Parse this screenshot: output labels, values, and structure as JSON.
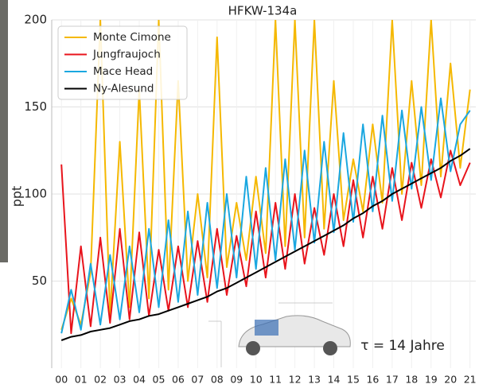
{
  "chart_data": {
    "type": "line",
    "title": "HFKW-134a",
    "ylabel": "ppt",
    "annotation": "τ = 14 Jahre",
    "x": [
      0,
      0.5,
      1,
      1.5,
      2,
      2.5,
      3,
      3.5,
      4,
      4.5,
      5,
      5.5,
      6,
      6.5,
      7,
      7.5,
      8,
      8.5,
      9,
      9.5,
      10,
      10.5,
      11,
      11.5,
      12,
      12.5,
      13,
      13.5,
      14,
      14.5,
      15,
      15.5,
      16,
      16.5,
      17,
      17.5,
      18,
      18.5,
      19,
      19.5,
      20,
      20.5,
      21
    ],
    "series": [
      {
        "name": "Monte Cimone",
        "color": "#f5b800",
        "values": [
          22,
          40,
          25,
          55,
          200,
          30,
          130,
          35,
          160,
          40,
          200,
          45,
          165,
          50,
          100,
          52,
          190,
          58,
          95,
          62,
          110,
          66,
          200,
          70,
          200,
          75,
          200,
          80,
          165,
          85,
          120,
          90,
          140,
          95,
          200,
          100,
          165,
          105,
          200,
          110,
          175,
          115,
          160
        ]
      },
      {
        "name": "Jungfraujoch",
        "color": "#e8141c",
        "values": [
          117,
          20,
          70,
          24,
          75,
          26,
          80,
          28,
          78,
          30,
          68,
          33,
          70,
          35,
          73,
          38,
          80,
          42,
          76,
          47,
          90,
          52,
          95,
          57,
          100,
          60,
          92,
          65,
          100,
          70,
          108,
          75,
          110,
          80,
          115,
          85,
          118,
          92,
          120,
          98,
          125,
          105,
          118
        ]
      },
      {
        "name": "Mace Head",
        "color": "#1aa7e0",
        "values": [
          20,
          45,
          22,
          60,
          25,
          65,
          28,
          70,
          32,
          80,
          35,
          85,
          38,
          90,
          42,
          95,
          46,
          100,
          52,
          110,
          57,
          115,
          62,
          120,
          68,
          125,
          72,
          130,
          78,
          135,
          84,
          140,
          90,
          145,
          96,
          148,
          103,
          150,
          108,
          155,
          113,
          140,
          148
        ]
      },
      {
        "name": "Ny-Alesund",
        "color": "#000000",
        "values": [
          16,
          18,
          19,
          21,
          22,
          23,
          25,
          27,
          28,
          30,
          31,
          33,
          35,
          37,
          39,
          41,
          44,
          46,
          49,
          52,
          55,
          58,
          61,
          64,
          67,
          70,
          73,
          76,
          79,
          82,
          86,
          89,
          93,
          96,
          100,
          103,
          106,
          109,
          112,
          115,
          119,
          122,
          126
        ]
      }
    ],
    "xlim": [
      -0.5,
      21.3
    ],
    "ylim": [
      0,
      200
    ],
    "yticks": [
      50,
      100,
      150,
      200
    ],
    "xticks": [
      {
        "value": 0,
        "label": "00"
      },
      {
        "value": 1,
        "label": "01"
      },
      {
        "value": 2,
        "label": "02"
      },
      {
        "value": 3,
        "label": "03"
      },
      {
        "value": 4,
        "label": "04"
      },
      {
        "value": 5,
        "label": "05"
      },
      {
        "value": 6,
        "label": "06"
      },
      {
        "value": 7,
        "label": "07"
      },
      {
        "value": 8,
        "label": "08"
      },
      {
        "value": 9,
        "label": "09"
      },
      {
        "value": 10,
        "label": "10"
      },
      {
        "value": 11,
        "label": "11"
      },
      {
        "value": 12,
        "label": "12"
      },
      {
        "value": 13,
        "label": "13"
      },
      {
        "value": 14,
        "label": "14"
      },
      {
        "value": 15,
        "label": "15"
      },
      {
        "value": 16,
        "label": "16"
      },
      {
        "value": 17,
        "label": "17"
      },
      {
        "value": 18,
        "label": "18"
      },
      {
        "value": 19,
        "label": "19"
      },
      {
        "value": 20,
        "label": "20"
      },
      {
        "value": 21,
        "label": "21"
      }
    ],
    "grid": true,
    "legend": "upper-left"
  }
}
